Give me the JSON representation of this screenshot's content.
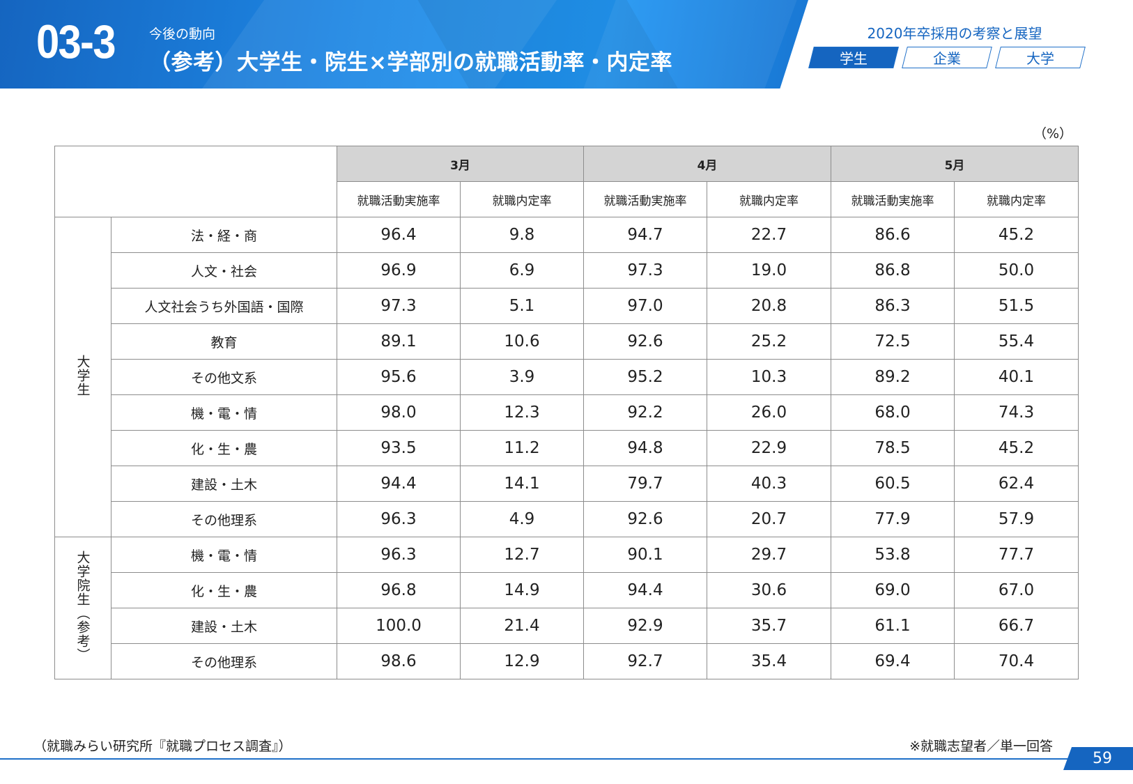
{
  "header": {
    "section_number": "03-3",
    "kicker": "今後の動向",
    "title": "（参考）大学生・院生×学部別の就職活動率・内定率",
    "report_title": "2020年卒採用の考察と展望",
    "tabs": [
      {
        "label": "学生",
        "active": true
      },
      {
        "label": "企業",
        "active": false
      },
      {
        "label": "大学",
        "active": false
      }
    ],
    "accent_color": "#1565c0"
  },
  "table": {
    "unit": "（%）",
    "months": [
      "3月",
      "4月",
      "5月"
    ],
    "subheaders": [
      "就職活動実施率",
      "就職内定率"
    ],
    "groups": [
      {
        "label": "大学生",
        "rows": [
          {
            "label": "法・経・商",
            "values": [
              "96.4",
              "9.8",
              "94.7",
              "22.7",
              "86.6",
              "45.2"
            ]
          },
          {
            "label": "人文・社会",
            "values": [
              "96.9",
              "6.9",
              "97.3",
              "19.0",
              "86.8",
              "50.0"
            ]
          },
          {
            "label": "人文社会うち外国語・国際",
            "values": [
              "97.3",
              "5.1",
              "97.0",
              "20.8",
              "86.3",
              "51.5"
            ]
          },
          {
            "label": "教育",
            "values": [
              "89.1",
              "10.6",
              "92.6",
              "25.2",
              "72.5",
              "55.4"
            ]
          },
          {
            "label": "その他文系",
            "values": [
              "95.6",
              "3.9",
              "95.2",
              "10.3",
              "89.2",
              "40.1"
            ]
          },
          {
            "label": "機・電・情",
            "values": [
              "98.0",
              "12.3",
              "92.2",
              "26.0",
              "68.0",
              "74.3"
            ]
          },
          {
            "label": "化・生・農",
            "values": [
              "93.5",
              "11.2",
              "94.8",
              "22.9",
              "78.5",
              "45.2"
            ]
          },
          {
            "label": "建設・土木",
            "values": [
              "94.4",
              "14.1",
              "79.7",
              "40.3",
              "60.5",
              "62.4"
            ]
          },
          {
            "label": "その他理系",
            "values": [
              "96.3",
              "4.9",
              "92.6",
              "20.7",
              "77.9",
              "57.9"
            ]
          }
        ]
      },
      {
        "label": "大学院生（参考）",
        "rows": [
          {
            "label": "機・電・情",
            "values": [
              "96.3",
              "12.7",
              "90.1",
              "29.7",
              "53.8",
              "77.7"
            ]
          },
          {
            "label": "化・生・農",
            "values": [
              "96.8",
              "14.9",
              "94.4",
              "30.6",
              "69.0",
              "67.0"
            ]
          },
          {
            "label": "建設・土木",
            "values": [
              "100.0",
              "21.4",
              "92.9",
              "35.7",
              "61.1",
              "66.7"
            ]
          },
          {
            "label": "その他理系",
            "values": [
              "98.6",
              "12.9",
              "92.7",
              "35.4",
              "69.4",
              "70.4"
            ]
          }
        ]
      }
    ]
  },
  "footer": {
    "source": "（就職みらい研究所『就職プロセス調査』）",
    "note": "※就職志望者／単一回答",
    "page_number": "59"
  }
}
